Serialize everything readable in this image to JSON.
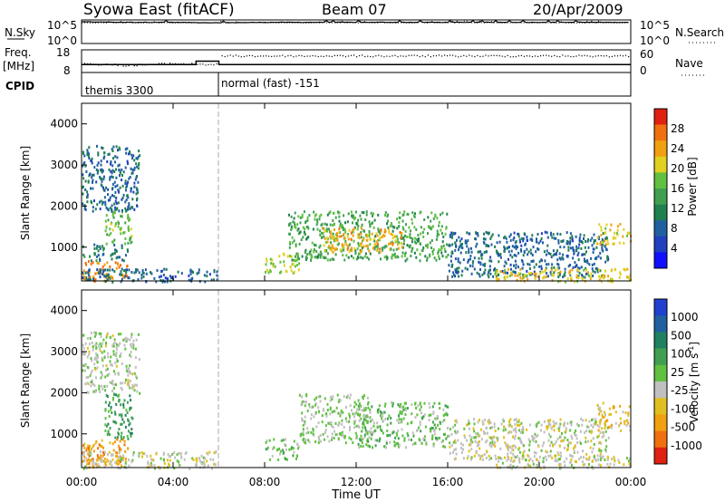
{
  "header": {
    "title": "Syowa East (fitACF)",
    "beam": "Beam 07",
    "date": "20/Apr/2009"
  },
  "noise_panel": {
    "left_label": "N.Sky",
    "right_label": "N.Search",
    "left_ticks": [
      "10^5",
      "10^0"
    ],
    "right_ticks": [
      "10^5",
      "10^0"
    ]
  },
  "freq_panel": {
    "left_label_1": "Freq.",
    "left_label_2": "[MHz]",
    "left_ticks": [
      "18",
      "8"
    ],
    "right_label": "Nave",
    "right_ticks": [
      "60",
      "0"
    ]
  },
  "cpid_panel": {
    "label": "CPID",
    "segments": [
      "themis 3300",
      "normal (fast) -151"
    ]
  },
  "x_axis": {
    "label": "Time UT",
    "ticks": [
      "00:00",
      "04:00",
      "08:00",
      "12:00",
      "16:00",
      "20:00",
      "00:00"
    ]
  },
  "power_panel": {
    "ylabel": "Slant Range [km]",
    "yticks": [
      "1000",
      "2000",
      "3000",
      "4000"
    ],
    "colorbar_label": "Power [dB]",
    "colorbar_ticks": [
      "4",
      "8",
      "12",
      "16",
      "20",
      "24",
      "28"
    ],
    "colors": [
      "#1010ff",
      "#2040c0",
      "#2060a0",
      "#208050",
      "#40a050",
      "#60c040",
      "#e0d020",
      "#f0a010",
      "#f07010",
      "#e02010"
    ]
  },
  "velocity_panel": {
    "ylabel": "Slant Range [km]",
    "yticks": [
      "1000",
      "2000",
      "3000",
      "4000"
    ],
    "colorbar_label": "Velocity [m s",
    "colorbar_label_sup": "-1",
    "colorbar_label_end": "]",
    "colorbar_ticks": [
      "1000",
      "500",
      "100",
      "25",
      "-25",
      "-100",
      "-500",
      "-1000"
    ],
    "colors": [
      "#2040d0",
      "#2060a0",
      "#208060",
      "#40a050",
      "#60c040",
      "#c0c0c0",
      "#e0c020",
      "#f0a010",
      "#f07010",
      "#e02010"
    ]
  },
  "chart_data": [
    {
      "type": "line",
      "title": "N.Sky / N.Search",
      "x_range_hours": [
        0,
        24
      ],
      "ylim_log10": [
        0,
        5
      ],
      "series": [
        {
          "name": "N.Sky",
          "x": [
            0,
            2,
            4,
            6,
            8,
            10,
            12,
            14,
            16,
            18,
            20,
            22,
            24
          ],
          "y_log10": [
            4.6,
            4.5,
            4.5,
            4.4,
            4.5,
            4.5,
            4.5,
            4.5,
            4.5,
            4.5,
            4.5,
            4.5,
            4.5
          ]
        },
        {
          "name": "N.Search",
          "x": [
            0,
            4,
            8,
            12,
            16,
            20,
            24
          ],
          "y_log10": [
            4.4,
            4.4,
            4.4,
            4.4,
            4.4,
            4.4,
            4.4
          ]
        }
      ]
    },
    {
      "type": "line",
      "title": "Freq. / Nave",
      "x_range_hours": [
        0,
        24
      ],
      "ylim": [
        8,
        18
      ],
      "y2lim": [
        0,
        60
      ],
      "series": [
        {
          "name": "Freq. [MHz]",
          "x": [
            0,
            5,
            5,
            6,
            6,
            24
          ],
          "y": [
            11.5,
            11.5,
            13,
            13,
            11.5,
            11.5
          ]
        },
        {
          "name": "Nave",
          "x": [
            0,
            2,
            4,
            6,
            6.01,
            10,
            14,
            18,
            24
          ],
          "y2": [
            25,
            20,
            25,
            22,
            45,
            45,
            45,
            45,
            45
          ]
        }
      ]
    },
    {
      "type": "table",
      "title": "CPID",
      "rows": [
        {
          "start_hour": 0,
          "end_hour": 6,
          "name": "themis 3300"
        },
        {
          "start_hour": 6,
          "end_hour": 24,
          "name": "normal (fast) -151"
        }
      ]
    },
    {
      "type": "heatmap",
      "title": "Power [dB]",
      "x_range_hours": [
        0,
        24
      ],
      "ylim_km": [
        180,
        4500
      ],
      "clim": [
        0,
        30
      ],
      "regions": [
        {
          "t": [
            0.0,
            2.0
          ],
          "r": [
            200,
            700
          ],
          "value": 24
        },
        {
          "t": [
            0.0,
            2.0
          ],
          "r": [
            700,
            1100
          ],
          "value": 10
        },
        {
          "t": [
            1.0,
            2.2
          ],
          "r": [
            1100,
            1900
          ],
          "value": 16
        },
        {
          "t": [
            0.0,
            2.5
          ],
          "r": [
            1900,
            3500
          ],
          "value": 8
        },
        {
          "t": [
            0.0,
            5.9
          ],
          "r": [
            180,
            500
          ],
          "value": 8
        },
        {
          "t": [
            8.0,
            9.5
          ],
          "r": [
            400,
            900
          ],
          "value": 18
        },
        {
          "t": [
            9.0,
            16.0
          ],
          "r": [
            700,
            1900
          ],
          "value": 14
        },
        {
          "t": [
            10.5,
            14.0
          ],
          "r": [
            900,
            1500
          ],
          "value": 22
        },
        {
          "t": [
            16.0,
            23.0
          ],
          "r": [
            300,
            1400
          ],
          "value": 8
        },
        {
          "t": [
            18.0,
            24.0
          ],
          "r": [
            180,
            500
          ],
          "value": 20
        },
        {
          "t": [
            22.5,
            24.0
          ],
          "r": [
            1100,
            1600
          ],
          "value": 20
        }
      ]
    },
    {
      "type": "heatmap",
      "title": "Velocity [m s-1]",
      "x_range_hours": [
        0,
        24
      ],
      "ylim_km": [
        180,
        4500
      ],
      "clim": [
        -1000,
        1000
      ],
      "regions": [
        {
          "t": [
            0.0,
            2.0
          ],
          "r": [
            200,
            900
          ],
          "value": -500
        },
        {
          "t": [
            1.0,
            2.2
          ],
          "r": [
            900,
            2000
          ],
          "value": 300
        },
        {
          "t": [
            0.0,
            2.5
          ],
          "r": [
            2000,
            3500
          ],
          "value": -50
        },
        {
          "t": [
            0.0,
            5.9
          ],
          "r": [
            180,
            600
          ],
          "value": -100
        },
        {
          "t": [
            8.0,
            9.5
          ],
          "r": [
            400,
            900
          ],
          "value": 100
        },
        {
          "t": [
            9.5,
            12.5
          ],
          "r": [
            800,
            2000
          ],
          "value": 0
        },
        {
          "t": [
            12.0,
            16.0
          ],
          "r": [
            700,
            1800
          ],
          "value": 100
        },
        {
          "t": [
            16.0,
            23.0
          ],
          "r": [
            400,
            1400
          ],
          "value": -100
        },
        {
          "t": [
            18.0,
            24.0
          ],
          "r": [
            180,
            500
          ],
          "value": -100
        },
        {
          "t": [
            22.5,
            24.0
          ],
          "r": [
            1100,
            1800
          ],
          "value": -300
        }
      ]
    }
  ]
}
